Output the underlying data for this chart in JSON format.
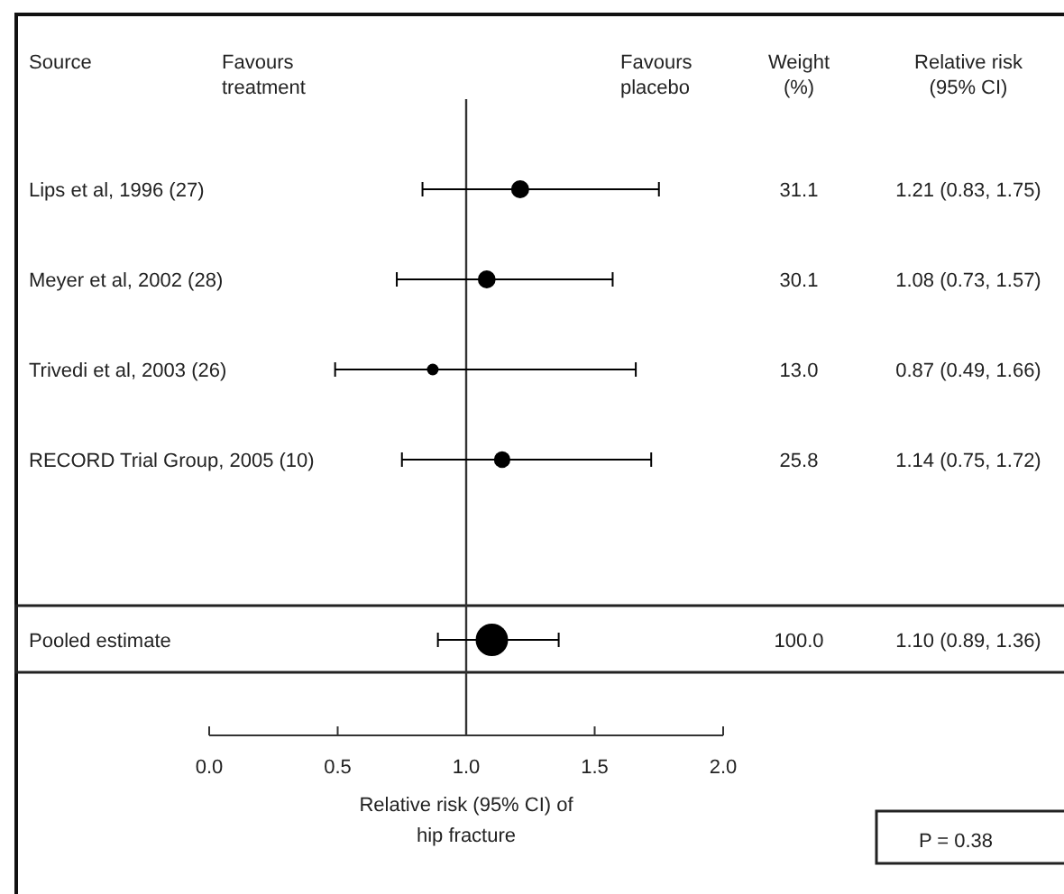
{
  "chart_data": {
    "type": "bubble",
    "orientation": "horizontal",
    "categories": [
      "Lips et al, 1996 (27)",
      "Meyer et al, 2002 (28)",
      "Trivedi et al, 2003 (26)",
      "RECORD Trial Group, 2005 (10)",
      null,
      "Pooled estimate"
    ],
    "values": [
      1.21,
      1.08,
      0.87,
      1.14,
      null,
      1.1
    ],
    "errors": [
      [
        0.83,
        1.75
      ],
      [
        0.73,
        1.57
      ],
      [
        0.49,
        1.66
      ],
      [
        0.75,
        1.72
      ],
      null,
      [
        0.89,
        1.36
      ]
    ],
    "sizes": [
      0.311,
      0.301,
      0.13,
      0.258,
      null,
      1
    ],
    "color": "#000000",
    "value_labels": [
      "1.21 (0.83, 1.75)",
      "1.08 (0.73, 1.57)",
      "0.87 (0.49, 1.66)",
      "1.14 (0.75, 1.72)",
      null,
      "1.10 (0.89, 1.36)"
    ],
    "xlim": [
      0,
      2
    ],
    "xticks": [
      {
        "value": 0,
        "label": "0.0"
      },
      0.5,
      {
        "value": 1,
        "label": "1.0"
      },
      1.5,
      {
        "value": 2,
        "label": "2.0"
      }
    ],
    "xlabel": "Relative risk (95% CI) of\nhip fracture",
    "ref_lines": [
      {
        "axis": "x",
        "value": 1
      }
    ],
    "annotations": [
      "Source",
      "Favours\ntreatment",
      "Favours\nplacebo",
      "Weight\n(%)",
      "Relative risk\n(95% CI)",
      "P = 0.38",
      "31.1",
      "30.1",
      "13.0",
      "25.8",
      "100.0"
    ]
  }
}
